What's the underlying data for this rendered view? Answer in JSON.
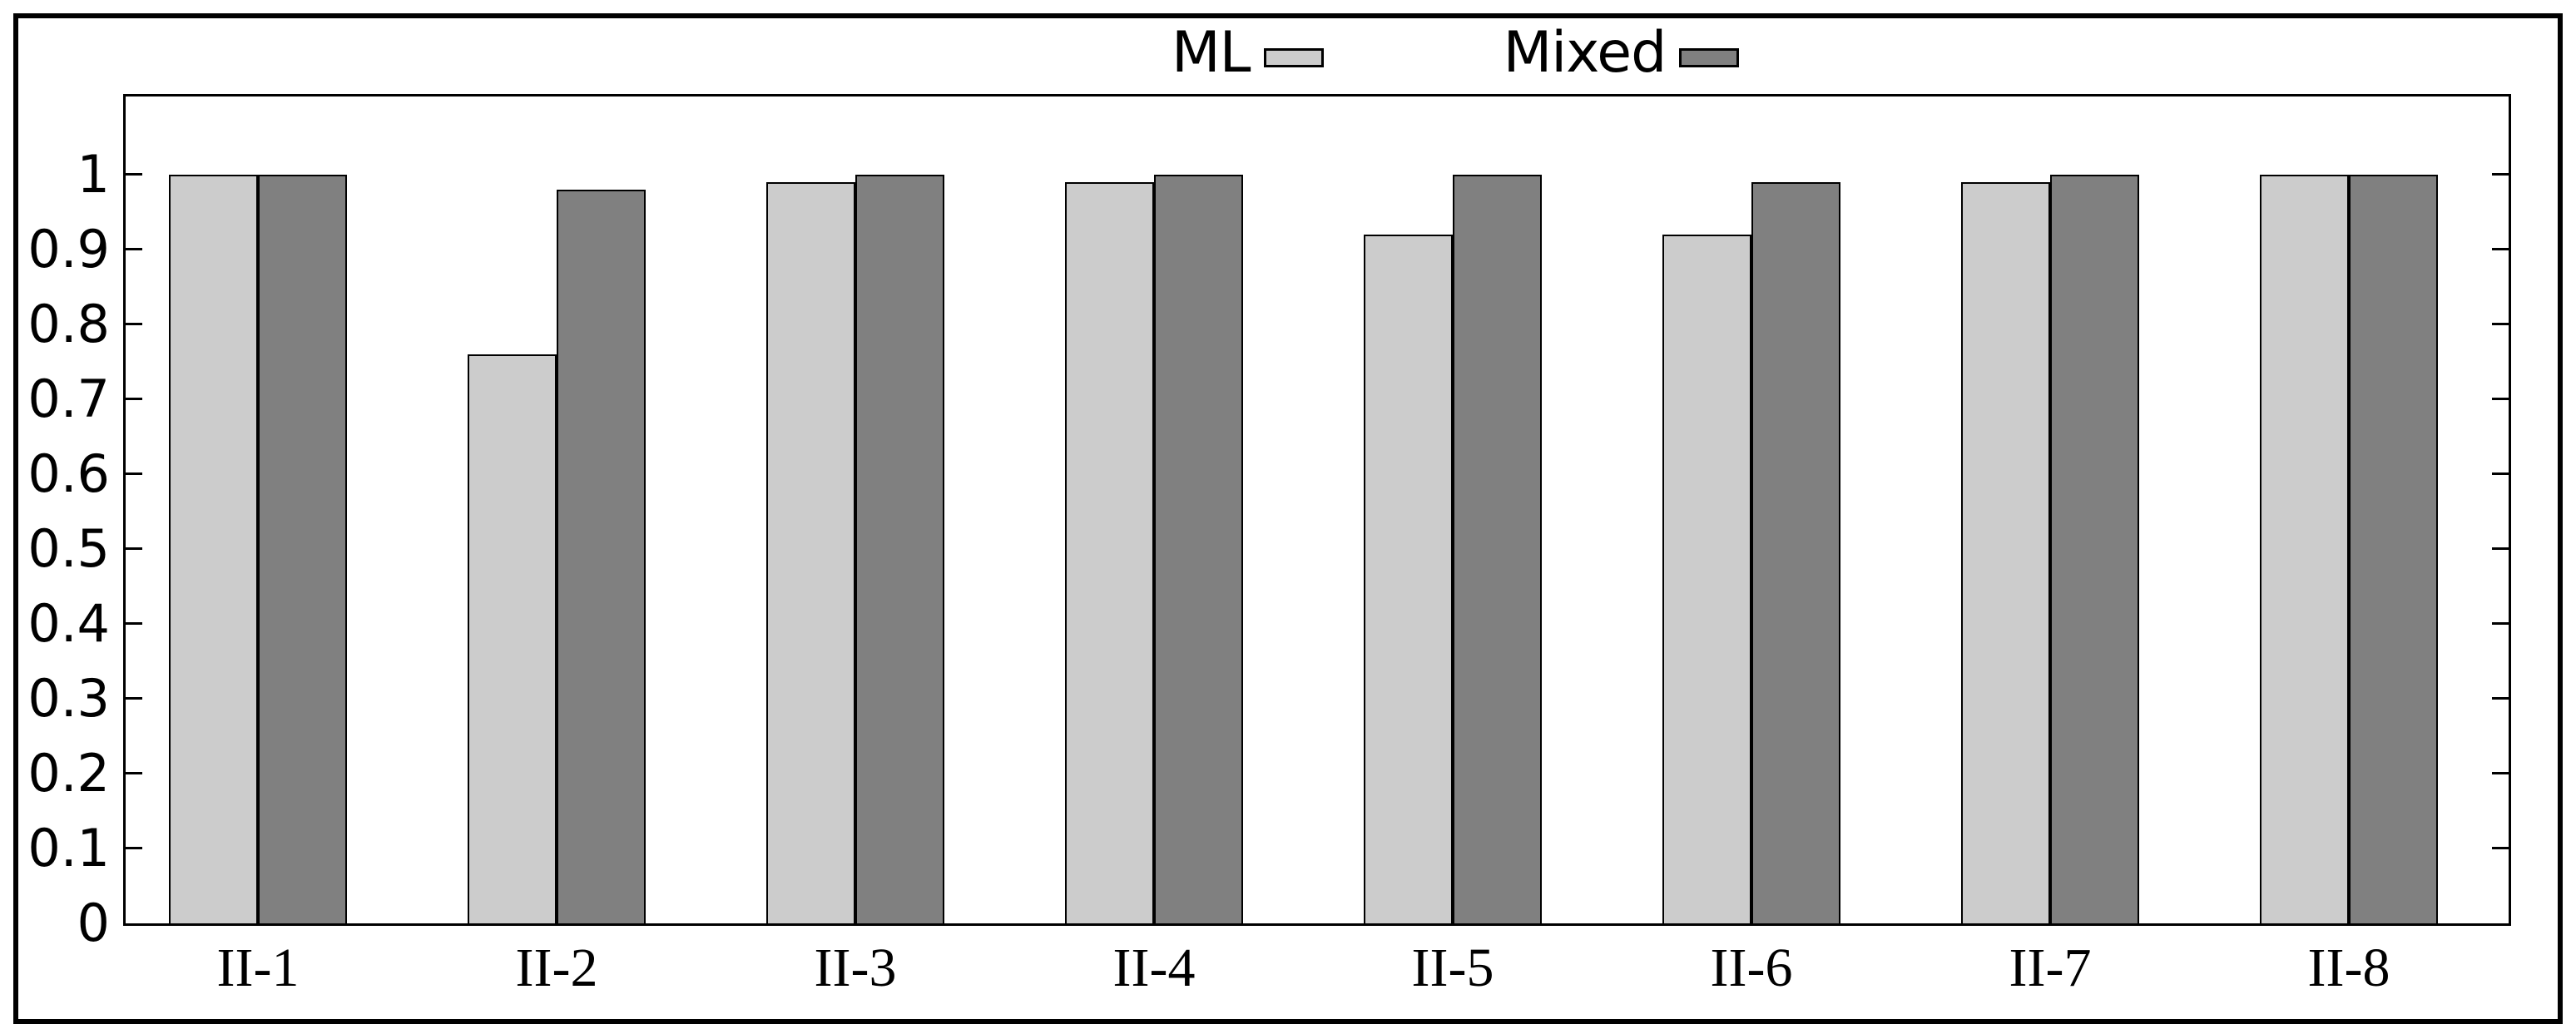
{
  "figure": {
    "background": "#ffffff",
    "border_color": "#000000"
  },
  "legend": {
    "items": [
      {
        "label": "ML",
        "color": "#cccccc"
      },
      {
        "label": "Mixed",
        "color": "#808080"
      }
    ]
  },
  "chart_data": {
    "type": "bar",
    "title": "",
    "xlabel": "",
    "ylabel": "",
    "categories": [
      "II-1",
      "II-2",
      "II-3",
      "II-4",
      "II-5",
      "II-6",
      "II-7",
      "II-8"
    ],
    "series": [
      {
        "name": "ML",
        "color": "#cccccc",
        "values": [
          1.0,
          0.76,
          0.99,
          0.99,
          0.92,
          0.92,
          0.99,
          1.0
        ]
      },
      {
        "name": "Mixed",
        "color": "#808080",
        "values": [
          1.0,
          0.98,
          1.0,
          1.0,
          1.0,
          0.99,
          1.0,
          1.0
        ]
      }
    ],
    "ylim": [
      0,
      1.104
    ],
    "yticks": [
      0,
      0.1,
      0.2,
      0.3,
      0.4,
      0.5,
      0.6,
      0.7,
      0.8,
      0.9,
      1
    ],
    "ytick_labels": [
      "0",
      "0.1",
      "0.2",
      "0.3",
      "0.4",
      "0.5",
      "0.6",
      "0.7",
      "0.8",
      "0.9",
      "1"
    ],
    "grid": false,
    "legend_position": "top-center",
    "bar_outline": "#000000"
  }
}
